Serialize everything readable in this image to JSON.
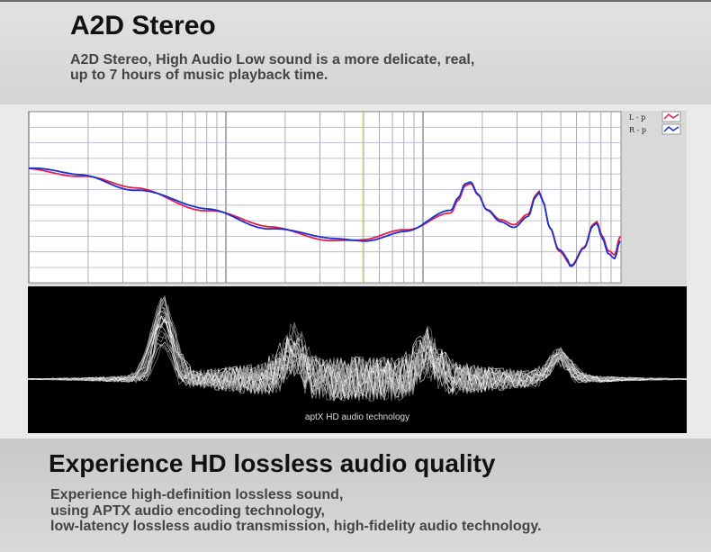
{
  "header": {
    "title": "A2D Stereo",
    "lines": [
      "A2D Stereo, High Audio Low sound is a more delicate, real,",
      "up to 7 hours of music playback time."
    ]
  },
  "legend": {
    "left": "L - p",
    "right": "R - p",
    "left_color": "#e0204a",
    "right_color": "#1a2fd0"
  },
  "waveform": {
    "caption": "aptX  HD audio technology"
  },
  "footer": {
    "title": "Experience HD lossless audio quality",
    "lines": [
      "Experience high-definition lossless sound,",
      "using APTX audio encoding technology,",
      "low-latency lossless audio transmission, high-fidelity audio technology."
    ]
  }
}
